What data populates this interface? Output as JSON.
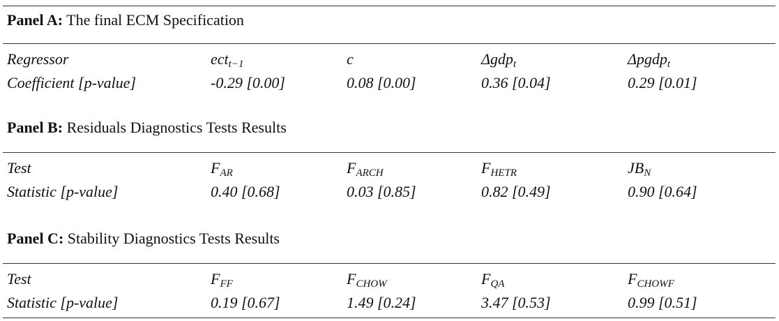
{
  "panels": [
    {
      "label": "Panel A:",
      "title": "The final ECM Specification",
      "rows": [
        [
          "Regressor",
          {
            "base": "ect",
            "sub": "t−1"
          },
          {
            "base": "c"
          },
          {
            "base": "Δgdp",
            "sub": "t"
          },
          {
            "base": "Δpgdp",
            "sub": "t"
          }
        ],
        [
          "Coefficient [p-value]",
          "-0.29 [0.00]",
          "0.08 [0.00]",
          "0.36 [0.04]",
          "0.29 [0.01]"
        ]
      ]
    },
    {
      "label": "Panel B:",
      "title": "Residuals Diagnostics Tests Results",
      "rows": [
        [
          "Test",
          {
            "base": "F",
            "sub": "AR"
          },
          {
            "base": "F",
            "sub": "ARCH"
          },
          {
            "base": "F",
            "sub": "HETR"
          },
          {
            "base": "JB",
            "sub": "N"
          }
        ],
        [
          "Statistic [p-value]",
          "0.40 [0.68]",
          "0.03 [0.85]",
          "0.82 [0.49]",
          "0.90 [0.64]"
        ]
      ]
    },
    {
      "label": "Panel C:",
      "title": "Stability Diagnostics Tests Results",
      "rows": [
        [
          "Test",
          {
            "base": "F",
            "sub": "FF"
          },
          {
            "base": "F",
            "sub": "CHOW"
          },
          {
            "base": "F",
            "sub": "QA"
          },
          {
            "base": "F",
            "sub": "CHOWF"
          }
        ],
        [
          "Statistic [p-value]",
          "0.19 [0.67]",
          "1.49 [0.24]",
          "3.47 [0.53]",
          "0.99 [0.51]"
        ]
      ]
    }
  ]
}
